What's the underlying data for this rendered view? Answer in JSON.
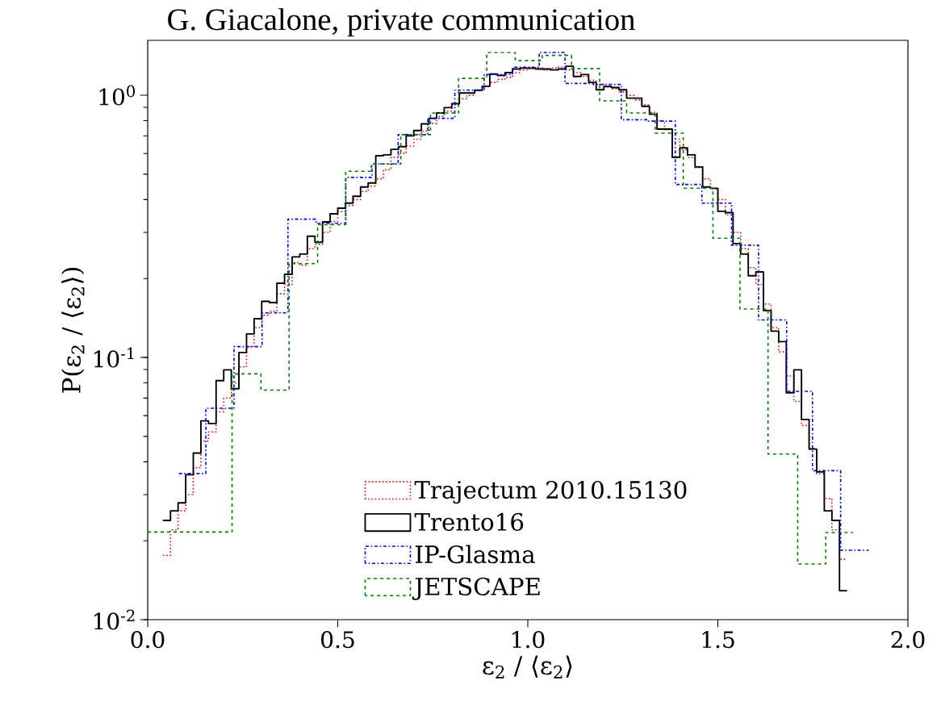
{
  "chart_data": {
    "type": "step",
    "title": "G. Giacalone, private communication",
    "xlabel": "ε$_{2}$ / ⟨ε$_{2}$⟩",
    "ylabel": "P(ε$_{2}$ / ⟨ε$_{2}$⟩)",
    "xlim": [
      0,
      2
    ],
    "ylim": [
      0.01,
      1.62
    ],
    "log": true,
    "xticks": [
      {
        "value": 0,
        "label": "0.0"
      },
      {
        "value": 0.5,
        "label": "0.5"
      },
      {
        "value": 1,
        "label": "1.0"
      },
      {
        "value": 1.5,
        "label": "1.5"
      },
      {
        "value": 2,
        "label": "2.0"
      }
    ],
    "yticks": [
      {
        "value": 0.01,
        "label": "10$^{-2}$"
      },
      {
        "value": 0.1,
        "label": "10$^{-1}$"
      },
      {
        "value": 1,
        "label": "10$^{0}$"
      }
    ],
    "legend": "bottom",
    "series": [
      {
        "name": "Trajectum 2010.15130",
        "color": "#ff0000",
        "line_style": "dotted",
        "x": [
          0.04,
          0.06,
          0.08,
          0.1,
          0.12,
          0.14,
          0.16,
          0.18,
          0.2,
          0.22,
          0.24,
          0.26,
          0.28,
          0.3,
          0.32,
          0.34,
          0.36,
          0.38,
          0.4,
          0.42,
          0.44,
          0.46,
          0.48,
          0.5,
          0.52,
          0.54,
          0.56,
          0.58,
          0.6,
          0.62,
          0.64,
          0.66,
          0.68,
          0.7,
          0.72,
          0.74,
          0.76,
          0.78,
          0.8,
          0.82,
          0.84,
          0.86,
          0.88,
          0.9,
          0.92,
          0.94,
          0.96,
          0.98,
          1.0,
          1.02,
          1.04,
          1.06,
          1.08,
          1.1,
          1.12,
          1.14,
          1.16,
          1.18,
          1.2,
          1.22,
          1.24,
          1.26,
          1.28,
          1.3,
          1.32,
          1.34,
          1.36,
          1.38,
          1.4,
          1.42,
          1.44,
          1.46,
          1.48,
          1.5,
          1.52,
          1.54,
          1.56,
          1.58,
          1.6,
          1.62,
          1.64,
          1.66,
          1.68,
          1.7,
          1.72,
          1.74,
          1.76,
          1.78,
          1.8,
          1.82,
          1.84
        ],
        "values": [
          0.0176,
          0.022,
          0.026,
          0.03,
          0.038,
          0.048,
          0.052,
          0.062,
          0.07,
          0.08,
          0.092,
          0.11,
          0.13,
          0.145,
          0.15,
          0.175,
          0.19,
          0.23,
          0.225,
          0.26,
          0.27,
          0.3,
          0.33,
          0.36,
          0.38,
          0.4,
          0.43,
          0.45,
          0.48,
          0.52,
          0.58,
          0.6,
          0.64,
          0.68,
          0.73,
          0.78,
          0.83,
          0.87,
          0.92,
          0.97,
          1.0,
          1.04,
          1.08,
          1.12,
          1.15,
          1.17,
          1.22,
          1.25,
          1.26,
          1.27,
          1.25,
          1.27,
          1.28,
          1.25,
          1.22,
          1.18,
          1.14,
          1.1,
          1.08,
          1.06,
          1.03,
          1.0,
          0.96,
          0.92,
          0.86,
          0.8,
          0.74,
          0.68,
          0.62,
          0.58,
          0.53,
          0.48,
          0.44,
          0.4,
          0.35,
          0.3,
          0.26,
          0.22,
          0.19,
          0.16,
          0.13,
          0.105,
          0.085,
          0.068,
          0.055,
          0.045,
          0.036,
          0.029,
          0.022,
          0.017,
          0.017
        ]
      },
      {
        "name": "Trento16",
        "color": "#000000",
        "line_style": "solid",
        "x": [
          0.04,
          0.06,
          0.08,
          0.1,
          0.12,
          0.14,
          0.16,
          0.18,
          0.2,
          0.22,
          0.24,
          0.26,
          0.28,
          0.3,
          0.32,
          0.34,
          0.36,
          0.38,
          0.4,
          0.42,
          0.44,
          0.46,
          0.48,
          0.5,
          0.52,
          0.54,
          0.56,
          0.58,
          0.6,
          0.62,
          0.64,
          0.66,
          0.68,
          0.7,
          0.72,
          0.74,
          0.76,
          0.78,
          0.8,
          0.82,
          0.84,
          0.86,
          0.88,
          0.9,
          0.92,
          0.94,
          0.96,
          0.98,
          1.0,
          1.02,
          1.04,
          1.06,
          1.08,
          1.1,
          1.12,
          1.14,
          1.16,
          1.18,
          1.2,
          1.22,
          1.24,
          1.26,
          1.28,
          1.3,
          1.32,
          1.34,
          1.36,
          1.38,
          1.4,
          1.42,
          1.44,
          1.46,
          1.48,
          1.5,
          1.52,
          1.54,
          1.56,
          1.58,
          1.6,
          1.62,
          1.64,
          1.66,
          1.68,
          1.7,
          1.72,
          1.74,
          1.76,
          1.78,
          1.8,
          1.82,
          1.84
        ],
        "values": [
          0.0239,
          0.026,
          0.0279,
          0.0357,
          0.0432,
          0.0573,
          0.056,
          0.0816,
          0.0897,
          0.076,
          0.1045,
          0.123,
          0.1406,
          0.1637,
          0.162,
          0.192,
          0.2075,
          0.242,
          0.248,
          0.29,
          0.275,
          0.329,
          0.353,
          0.371,
          0.388,
          0.412,
          0.447,
          0.463,
          0.588,
          0.593,
          0.622,
          0.637,
          0.7,
          0.734,
          0.778,
          0.817,
          0.856,
          0.897,
          0.929,
          1.02,
          1.02,
          1.046,
          1.083,
          1.205,
          1.19,
          1.22,
          1.26,
          1.27,
          1.27,
          1.26,
          1.26,
          1.25,
          1.26,
          1.29,
          1.18,
          1.2,
          1.12,
          1.05,
          1.08,
          1.07,
          1.05,
          0.975,
          0.975,
          0.908,
          0.846,
          0.743,
          0.743,
          0.58,
          0.63,
          0.593,
          0.533,
          0.447,
          0.442,
          0.361,
          0.357,
          0.272,
          0.248,
          0.205,
          0.212,
          0.151,
          0.126,
          0.115,
          0.0734,
          0.0897,
          0.058,
          0.0447,
          0.0366,
          0.026,
          0.0239,
          0.0129,
          0.0129
        ]
      },
      {
        "name": "IP-Glasma",
        "color": "#0000ff",
        "line_style": "dashdot",
        "x": [
          0.082,
          0.153,
          0.227,
          0.301,
          0.369,
          0.443,
          0.521,
          0.59,
          0.659,
          0.737,
          0.808,
          0.885,
          0.96,
          1.03,
          1.098,
          1.172,
          1.246,
          1.317,
          1.388,
          1.458,
          1.536,
          1.607,
          1.681,
          1.749,
          1.823,
          1.897
        ],
        "values": [
          0.0361,
          0.064,
          0.11,
          0.148,
          0.337,
          0.325,
          0.486,
          0.547,
          0.708,
          0.817,
          1.046,
          1.2,
          1.28,
          1.456,
          1.11,
          1.1,
          0.807,
          0.797,
          0.457,
          0.388,
          0.268,
          0.139,
          0.0743,
          0.037,
          0.0184,
          0.0184
        ]
      },
      {
        "name": "JETSCAPE",
        "color": "#008000",
        "line_style": "dashed",
        "x": [
          0.0,
          0.222,
          0.298,
          0.372,
          0.447,
          0.521,
          0.588,
          0.666,
          0.744,
          0.818,
          0.892,
          0.967,
          1.038,
          1.115,
          1.189,
          1.26,
          1.335,
          1.409,
          1.487,
          1.558,
          1.632,
          1.71,
          1.784,
          1.855
        ],
        "values": [
          0.0216,
          0.0866,
          0.0751,
          0.228,
          0.321,
          0.513,
          0.547,
          0.708,
          0.856,
          1.16,
          1.456,
          1.356,
          1.42,
          1.263,
          0.952,
          0.856,
          0.717,
          0.442,
          0.285,
          0.153,
          0.0428,
          0.0163,
          0.0215,
          0.0215
        ]
      }
    ]
  }
}
